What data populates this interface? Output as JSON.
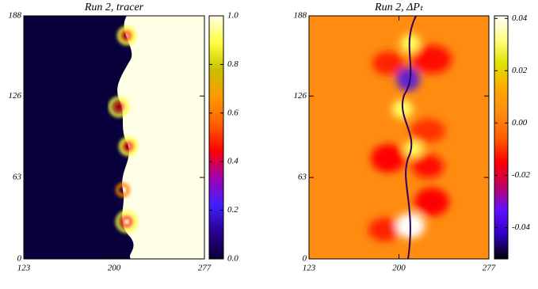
{
  "chart_data": [
    {
      "type": "heatmap",
      "title": "Run 2, tracer",
      "xlim": [
        123,
        277
      ],
      "xticks": [
        123,
        200,
        277
      ],
      "ylim": [
        0,
        188
      ],
      "yticks": [
        0,
        63,
        126,
        188
      ],
      "colorbar": {
        "lim": [
          0,
          1
        ],
        "ticks": [
          {
            "value": 0,
            "label": "0.0"
          },
          0.2,
          0.4,
          0.6,
          0.8,
          {
            "value": 1,
            "label": "1.0"
          }
        ],
        "colors": [
          "#08003a",
          "#2a0090",
          "#4020ff",
          "#a000b0",
          "#ff0000",
          "#ff6000",
          "#ff9a00",
          "#c8c000",
          "#ffff40",
          "#ffffe6"
        ]
      }
    },
    {
      "type": "heatmap",
      "title": "Run 2, ΔPₜ",
      "xlim": [
        123,
        277
      ],
      "xticks": [
        123,
        200,
        277
      ],
      "ylim": [
        0,
        188
      ],
      "yticks": [
        0,
        63,
        126,
        188
      ],
      "colorbar": {
        "lim": [
          -0.052,
          0.041
        ],
        "ticks": [
          -0.04,
          -0.02,
          {
            "value": 0,
            "label": "0.00"
          },
          0.02,
          0.04
        ],
        "colors": [
          "#000000",
          "#3000c0",
          "#6010ff",
          "#c00060",
          "#ff0000",
          "#ff6000",
          "#ff8c10",
          "#ffa800",
          "#e0e000",
          "#ffff80",
          "#ffffff"
        ]
      }
    }
  ]
}
